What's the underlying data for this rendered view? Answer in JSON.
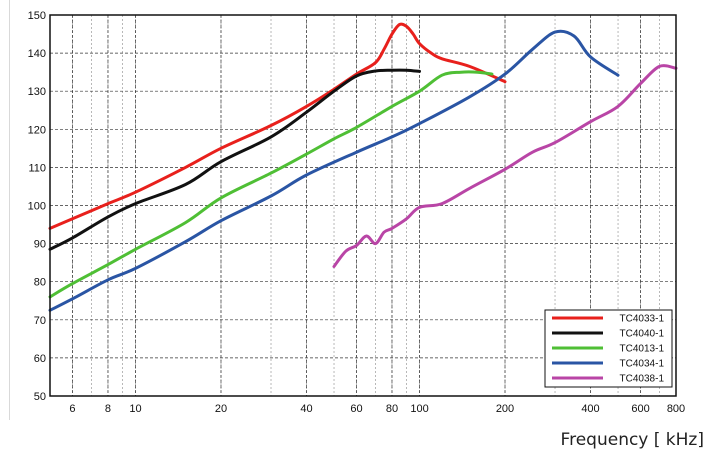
{
  "chart_data": {
    "type": "line",
    "xlabel": "Frequency [ kHz]",
    "ylabel": "",
    "x_scale": "log",
    "xlim": [
      5,
      800
    ],
    "ylim": [
      50,
      150
    ],
    "grid": true,
    "legend_position": "bottom-right",
    "x_ticks": [
      6,
      8,
      10,
      20,
      40,
      60,
      80,
      100,
      200,
      400,
      600,
      800
    ],
    "x_tick_labels": [
      "6",
      "8",
      "10",
      "20",
      "40",
      "60",
      "80",
      "100",
      "200",
      "400",
      "600",
      "800"
    ],
    "y_ticks": [
      50,
      60,
      70,
      80,
      90,
      100,
      110,
      120,
      130,
      140,
      150
    ],
    "y_tick_labels": [
      "50",
      "60",
      "70",
      "80",
      "90",
      "100",
      "110",
      "120",
      "130",
      "140",
      "150"
    ],
    "series": [
      {
        "name": "TC4033-1",
        "color": "#e8201c",
        "x": [
          5,
          6,
          8,
          10,
          15,
          20,
          30,
          40,
          50,
          60,
          70,
          75,
          80,
          85,
          90,
          95,
          100,
          110,
          120,
          150,
          200
        ],
        "y": [
          94,
          96.5,
          100.5,
          103.5,
          110,
          115,
          121,
          126,
          130.5,
          134.5,
          137.5,
          141,
          145,
          147.5,
          147,
          145,
          142.5,
          140,
          138.5,
          136.5,
          132.5
        ]
      },
      {
        "name": "TC4040-1",
        "color": "#111111",
        "x": [
          5,
          6,
          8,
          10,
          15,
          20,
          30,
          40,
          50,
          60,
          70,
          80,
          90,
          100
        ],
        "y": [
          88.5,
          91.5,
          97,
          100.5,
          105.5,
          111.5,
          118,
          124.5,
          130,
          134,
          135.3,
          135.5,
          135.5,
          135.2
        ]
      },
      {
        "name": "TC4013-1",
        "color": "#4fbf35",
        "x": [
          5,
          6,
          8,
          10,
          15,
          20,
          30,
          40,
          50,
          60,
          80,
          100,
          120,
          140,
          160,
          180
        ],
        "y": [
          76,
          79.5,
          84.5,
          88.5,
          95.5,
          102,
          108.5,
          113.5,
          117.5,
          120.5,
          126,
          130,
          134.2,
          135,
          135,
          134.5
        ]
      },
      {
        "name": "TC4034-1",
        "color": "#2a55a4",
        "x": [
          5,
          6,
          8,
          10,
          15,
          20,
          30,
          40,
          60,
          80,
          100,
          150,
          200,
          250,
          300,
          350,
          400,
          500
        ],
        "y": [
          72.5,
          75.5,
          80.5,
          83.5,
          90.5,
          96,
          102.5,
          108,
          114,
          118,
          121.5,
          128.5,
          134.5,
          141,
          145.5,
          144.5,
          139,
          134.2
        ]
      },
      {
        "name": "TC4038-1",
        "color": "#b945a6",
        "x": [
          50,
          55,
          60,
          65,
          70,
          75,
          80,
          90,
          100,
          120,
          150,
          200,
          250,
          300,
          400,
          500,
          600,
          700,
          800
        ],
        "y": [
          84,
          88,
          89.5,
          92,
          90,
          93,
          94,
          96.5,
          99.5,
          100.5,
          104.5,
          109.5,
          114,
          116.5,
          122,
          126,
          132,
          136.5,
          136
        ]
      }
    ]
  }
}
